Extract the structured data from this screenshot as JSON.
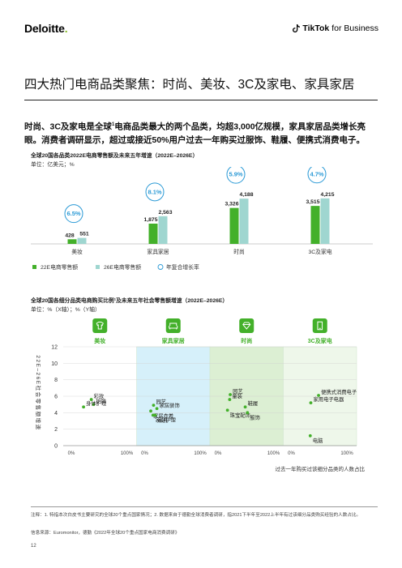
{
  "header": {
    "deloitte_logo": "Deloitte",
    "deloitte_dot": ".",
    "tiktok_logo_brand": "TikTok",
    "tiktok_logo_suffix": "for Business"
  },
  "page_title": "四大热门电商品类聚焦：时尚、美妆、3C及家电、家具家居",
  "lead_text_1": "时尚、3C及家电是全球",
  "lead_sup": "1",
  "lead_text_2": "电商品类最大的两个品类，均超3,000亿规模，家具家居品类增长亮眼。消费者调研显示，超过或接近50%用户过去一年购买过服饰、鞋履、便携式消费电子。",
  "chart1": {
    "title": "全球20国各品类2022E电商零售额及未来五年增速（2022E–2026E）",
    "unit": "单位：亿美元；%",
    "legend": {
      "a": "22E电商零售额",
      "b": "26E电商零售额",
      "c": "年复合增长率"
    },
    "colors": {
      "a": "#43b02a",
      "b": "#9fd6d0",
      "cagr": "#2b9ad6"
    }
  },
  "chart2": {
    "title": "全球20国各细分品类电商购买比例¹及未来五年社会零售额增速（2022E–2026E）",
    "unit": "单位：%（X轴）；%（Y轴）",
    "ylabel": "22E–26E社会零售额增速",
    "xlabel": "过去一年购买过该细分品类的人数占比",
    "icons": [
      "tshirt-icon",
      "sofa-icon",
      "diamond-icon",
      "phone-icon"
    ],
    "colors": {
      "dot": "#43b02a",
      "panels": [
        "#ffffff",
        "#d6f0fa",
        "#dcefd3",
        "#eef7ea"
      ]
    }
  },
  "chart_data": [
    {
      "type": "bar",
      "categories": [
        "美妆",
        "家具家居",
        "时尚",
        "3C及家电"
      ],
      "series": [
        {
          "name": "22E电商零售额",
          "values": [
            428,
            1875,
            3326,
            3515
          ]
        },
        {
          "name": "26E电商零售额",
          "values": [
            551,
            2563,
            4188,
            4215
          ]
        }
      ],
      "cagr": [
        "6.5%",
        "8.1%",
        "5.9%",
        "4.7%"
      ],
      "value_labels_a": [
        "428",
        "1,875",
        "3,326",
        "3,515"
      ],
      "value_labels_b": [
        "551",
        "2,563",
        "4,188",
        "4,215"
      ],
      "ylim": [
        0,
        4500
      ]
    },
    {
      "type": "scatter",
      "ylim": [
        0,
        12
      ],
      "yticks": [
        "0",
        "2",
        "4",
        "6",
        "8",
        "10",
        "12"
      ],
      "panels": [
        {
          "category": "美妆",
          "xticks": [
            "0%",
            "100%"
          ],
          "points": [
            {
              "label": "彩妆",
              "x": 36,
              "y": 5.6
            },
            {
              "label": "护肤",
              "x": 40,
              "y": 5.0
            },
            {
              "label": "身体护理",
              "x": 22,
              "y": 4.7
            }
          ]
        },
        {
          "category": "家具家居",
          "xticks": [
            "0%",
            "100%"
          ],
          "points": [
            {
              "label": "园艺",
              "x": 16,
              "y": 4.9
            },
            {
              "label": "家居装饰",
              "x": 22,
              "y": 4.5
            },
            {
              "label": "家居衣着",
              "x": 11,
              "y": 4.2
            },
            {
              "label": "家庭护理",
              "x": 15,
              "y": 3.7
            },
            {
              "label": "家具",
              "x": 19,
              "y": 3.7
            }
          ]
        },
        {
          "category": "时尚",
          "xticks": [
            "0%",
            "100%"
          ],
          "points": [
            {
              "label": "园艺",
              "x": 22,
              "y": 6.2
            },
            {
              "label": "童装",
              "x": 21,
              "y": 5.6
            },
            {
              "label": "珠宝配饰",
              "x": 17,
              "y": 4.3
            },
            {
              "label": "鞋履",
              "x": 49,
              "y": 4.7
            },
            {
              "label": "服饰",
              "x": 53,
              "y": 4.0
            }
          ]
        },
        {
          "category": "3C及家电",
          "xticks": [
            "0%",
            "100%"
          ],
          "points": [
            {
              "label": "便携式消费电子",
              "x": 49,
              "y": 6.1
            },
            {
              "label": "家用电子电器",
              "x": 35,
              "y": 5.2
            },
            {
              "label": "电脑",
              "x": 34,
              "y": 1.2
            }
          ]
        }
      ]
    }
  ],
  "notes": {
    "note": "注释：1. 特指本次白皮书主要研究的全球20个重点国家情况；2. 数据来自于德勤全球消费者调研，指2021下半年至2022上半年有过该细分品类购买经验的人数占比。",
    "source": "信息来源：Euromonitor，德勤《2022年全球20个重点国家电商消费调研》"
  },
  "page_number": "12"
}
